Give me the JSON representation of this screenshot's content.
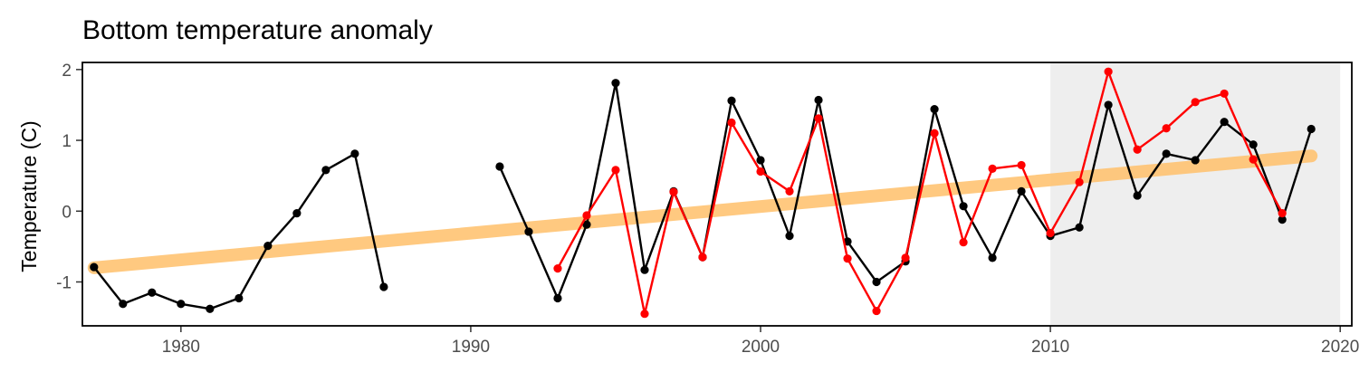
{
  "chart_data": {
    "type": "line",
    "title": "Bottom temperature anomaly",
    "xlabel": "",
    "ylabel": "Temperature (C)",
    "xlim": [
      1976.6,
      2020.4
    ],
    "ylim": [
      -1.62,
      2.1
    ],
    "x_ticks": [
      "1980",
      "1990",
      "2000",
      "2010",
      "2020"
    ],
    "y_ticks": [
      "-1",
      "0",
      "1",
      "2"
    ],
    "grid": false,
    "legend": "none",
    "shaded_region": {
      "x_start": 2010,
      "x_end": 2020,
      "color": "#eeeeee"
    },
    "series": [
      {
        "color": "#000000",
        "segments": [
          [
            [
              1977,
              -0.79
            ],
            [
              1978,
              -1.31
            ],
            [
              1979,
              -1.15
            ],
            [
              1980,
              -1.31
            ],
            [
              1981,
              -1.38
            ],
            [
              1982,
              -1.23
            ],
            [
              1983,
              -0.49
            ],
            [
              1984,
              -0.03
            ],
            [
              1985,
              0.58
            ],
            [
              1986,
              0.81
            ],
            [
              1987,
              -1.07
            ]
          ],
          [
            [
              1991,
              0.63
            ],
            [
              1992,
              -0.29
            ],
            [
              1993,
              -1.23
            ],
            [
              1994,
              -0.19
            ],
            [
              1995,
              1.81
            ],
            [
              1996,
              -0.83
            ],
            [
              1997,
              0.28
            ],
            [
              1998,
              -0.65
            ],
            [
              1999,
              1.56
            ],
            [
              2000,
              0.72
            ],
            [
              2001,
              -0.35
            ],
            [
              2002,
              1.57
            ],
            [
              2003,
              -0.43
            ],
            [
              2004,
              -1.0
            ],
            [
              2005,
              -0.71
            ],
            [
              2006,
              1.44
            ],
            [
              2007,
              0.07
            ],
            [
              2008,
              -0.66
            ],
            [
              2009,
              0.28
            ],
            [
              2010,
              -0.35
            ],
            [
              2011,
              -0.23
            ],
            [
              2012,
              1.5
            ],
            [
              2013,
              0.22
            ],
            [
              2014,
              0.81
            ],
            [
              2015,
              0.72
            ],
            [
              2016,
              1.26
            ],
            [
              2017,
              0.94
            ],
            [
              2018,
              -0.12
            ],
            [
              2019,
              1.16
            ]
          ]
        ]
      },
      {
        "color": "#ff0000",
        "segments": [
          [
            [
              1993,
              -0.81
            ],
            [
              1994,
              -0.06
            ],
            [
              1995,
              0.58
            ],
            [
              1996,
              -1.45
            ],
            [
              1997,
              0.27
            ],
            [
              1998,
              -0.65
            ],
            [
              1999,
              1.25
            ],
            [
              2000,
              0.56
            ],
            [
              2001,
              0.28
            ],
            [
              2002,
              1.31
            ],
            [
              2003,
              -0.67
            ],
            [
              2004,
              -1.41
            ],
            [
              2005,
              -0.66
            ],
            [
              2006,
              1.1
            ],
            [
              2007,
              -0.44
            ],
            [
              2008,
              0.6
            ],
            [
              2009,
              0.65
            ],
            [
              2010,
              -0.31
            ],
            [
              2011,
              0.41
            ],
            [
              2012,
              1.97
            ],
            [
              2013,
              0.87
            ],
            [
              2014,
              1.17
            ],
            [
              2015,
              1.54
            ],
            [
              2016,
              1.66
            ],
            [
              2017,
              0.73
            ],
            [
              2018,
              -0.03
            ]
          ]
        ]
      }
    ],
    "trend": {
      "color": "#ffc06a",
      "x": [
        1977,
        2019
      ],
      "y": [
        -0.8,
        0.78
      ]
    }
  }
}
